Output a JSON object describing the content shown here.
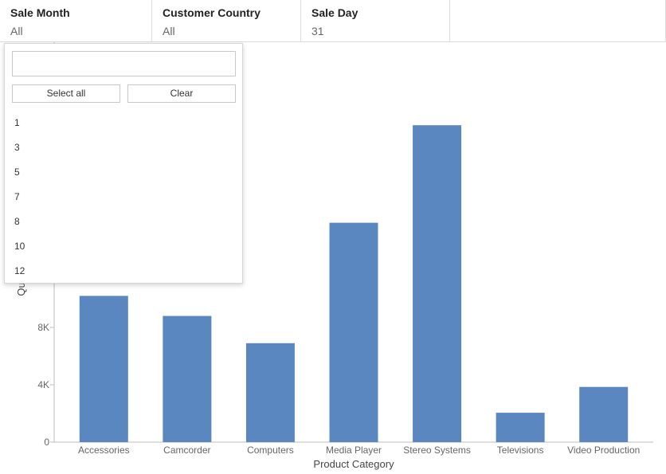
{
  "filters": [
    {
      "title": "Sale Month",
      "value": "All"
    },
    {
      "title": "Customer Country",
      "value": "All"
    },
    {
      "title": "Sale Day",
      "value": "31"
    }
  ],
  "dropdown": {
    "search_value": "",
    "select_all_label": "Select all",
    "clear_label": "Clear",
    "options": [
      "1",
      "3",
      "5",
      "7",
      "8",
      "10",
      "12"
    ]
  },
  "colors": {
    "bar": "#5b87c0",
    "axis": "#bdbdbd",
    "text": "#666666"
  },
  "chart_data": {
    "type": "bar",
    "title": "",
    "xlabel": "Product Category",
    "ylabel": "Qu",
    "categories": [
      "Accessories",
      "Camcorder",
      "Computers",
      "Media Player",
      "Stereo Systems",
      "Televisions",
      "Video Production"
    ],
    "values": [
      10200,
      8800,
      6900,
      15300,
      22100,
      2050,
      3850
    ],
    "ylim": [
      0,
      22500
    ],
    "yticks": [
      0,
      4000,
      8000
    ],
    "ytick_labels": [
      "0",
      "4K",
      "8K"
    ],
    "grid": false
  }
}
